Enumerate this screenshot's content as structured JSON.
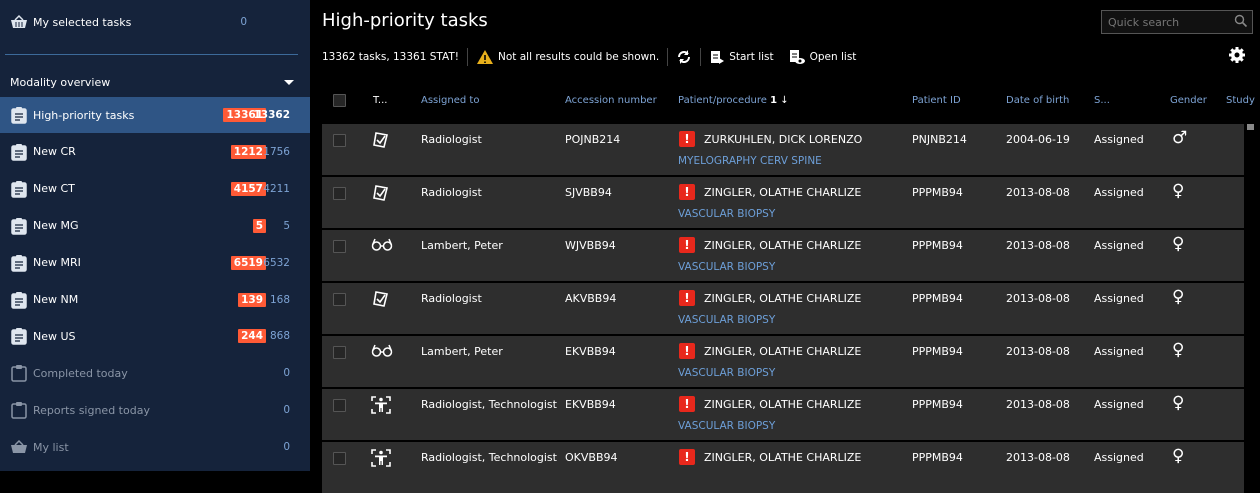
{
  "sidebar": {
    "selected_tasks": {
      "label": "My selected tasks",
      "count": "0",
      "icon": "basket-icon"
    },
    "section_title": "Modality overview",
    "items": [
      {
        "label": "High-priority tasks",
        "badge": "13361",
        "count": "13362",
        "selected": true
      },
      {
        "label": "New CR",
        "badge": "1212",
        "count": "1756"
      },
      {
        "label": "New CT",
        "badge": "4157",
        "count": "4211"
      },
      {
        "label": "New MG",
        "badge": "5",
        "count": "5"
      },
      {
        "label": "New MRI",
        "badge": "6519",
        "count": "6532"
      },
      {
        "label": "New NM",
        "badge": "139",
        "count": "168"
      },
      {
        "label": "New US",
        "badge": "244",
        "count": "868"
      },
      {
        "label": "Completed today",
        "count": "0",
        "dim": true
      },
      {
        "label": "Reports signed today",
        "count": "0",
        "dim": true
      },
      {
        "label": "My list",
        "count": "0",
        "dim": true,
        "icon": "basket-icon"
      }
    ]
  },
  "main": {
    "title": "High-priority tasks",
    "search_placeholder": "Quick search",
    "summary": "13362 tasks, 13361 STAT!",
    "warning": "Not all results could be shown.",
    "start_list": "Start list",
    "open_list": "Open list",
    "columns": [
      "T...",
      "Assigned to",
      "Accession number",
      "Patient/procedure",
      "1",
      "Patient ID",
      "Date of birth",
      "S...",
      "Gender",
      "Study"
    ],
    "rows": [
      {
        "type": "report",
        "assigned": "Radiologist",
        "accession": "POJNB214",
        "patient": "ZURKUHLEN, DICK LORENZO",
        "procedure": "MYELOGRAPHY CERV SPINE",
        "pid": "PNJNB214",
        "dob": "2004-06-19",
        "status": "Assigned",
        "gender": "male"
      },
      {
        "type": "report",
        "assigned": "Radiologist",
        "accession": "SJVBB94",
        "patient": "ZINGLER, OLATHE CHARLIZE",
        "procedure": "VASCULAR BIOPSY",
        "pid": "PPPMB94",
        "dob": "2013-08-08",
        "status": "Assigned",
        "gender": "female"
      },
      {
        "type": "review",
        "assigned": "Lambert, Peter",
        "accession": "WJVBB94",
        "patient": "ZINGLER, OLATHE CHARLIZE",
        "procedure": "VASCULAR BIOPSY",
        "pid": "PPPMB94",
        "dob": "2013-08-08",
        "status": "Assigned",
        "gender": "female"
      },
      {
        "type": "report",
        "assigned": "Radiologist",
        "accession": "AKVBB94",
        "patient": "ZINGLER, OLATHE CHARLIZE",
        "procedure": "VASCULAR BIOPSY",
        "pid": "PPPMB94",
        "dob": "2013-08-08",
        "status": "Assigned",
        "gender": "female"
      },
      {
        "type": "review",
        "assigned": "Lambert, Peter",
        "accession": "EKVBB94",
        "patient": "ZINGLER, OLATHE CHARLIZE",
        "procedure": "VASCULAR BIOPSY",
        "pid": "PPPMB94",
        "dob": "2013-08-08",
        "status": "Assigned",
        "gender": "female"
      },
      {
        "type": "scan",
        "assigned": "Radiologist, Technologist",
        "accession": "EKVBB94",
        "patient": "ZINGLER, OLATHE CHARLIZE",
        "procedure": "VASCULAR BIOPSY",
        "pid": "PPPMB94",
        "dob": "2013-08-08",
        "status": "Assigned",
        "gender": "female"
      },
      {
        "type": "scan",
        "assigned": "Radiologist, Technologist",
        "accession": "OKVBB94",
        "patient": "ZINGLER, OLATHE CHARLIZE",
        "procedure": "",
        "pid": "PPPMB94",
        "dob": "2013-08-08",
        "status": "Assigned",
        "gender": "female"
      }
    ]
  },
  "colors": {
    "sidebar": "#15233b",
    "selected": "#2f5585",
    "badge": "#ff5a36",
    "link": "#7da3d4",
    "stat": "#e8281c"
  }
}
